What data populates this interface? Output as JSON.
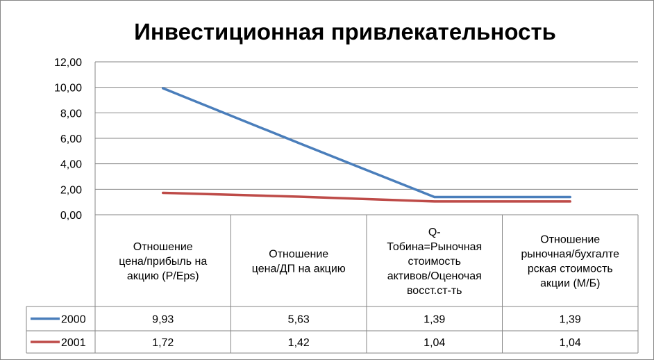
{
  "chart_data": {
    "type": "line",
    "title": "Инвестиционная привлекательность",
    "xlabel": "",
    "ylabel": "",
    "ylim": [
      0,
      12
    ],
    "y_ticks": [
      "0,00",
      "2,00",
      "4,00",
      "6,00",
      "8,00",
      "10,00",
      "12,00"
    ],
    "grid": true,
    "legend": "data-table",
    "categories": [
      [
        "Отношение",
        "цена/прибыль на",
        "акцию (P/Eps)"
      ],
      [
        "Отношение",
        "цена/ДП на акцию"
      ],
      [
        "Q-",
        "Тобина=Рыночная",
        "стоимость",
        "активов/Оценочая",
        "восст.ст-ть"
      ],
      [
        "Отношение",
        "рыночная/бухгалте",
        "рская стоимость",
        "акции (М/Б)"
      ]
    ],
    "series": [
      {
        "name": "2000",
        "color": "#4a7ebb",
        "values": [
          9.93,
          5.63,
          1.39,
          1.39
        ],
        "labels": [
          "9,93",
          "5,63",
          "1,39",
          "1,39"
        ]
      },
      {
        "name": "2001",
        "color": "#be4b48",
        "values": [
          1.72,
          1.42,
          1.04,
          1.04
        ],
        "labels": [
          "1,72",
          "1,42",
          "1,04",
          "1,04"
        ]
      }
    ]
  }
}
